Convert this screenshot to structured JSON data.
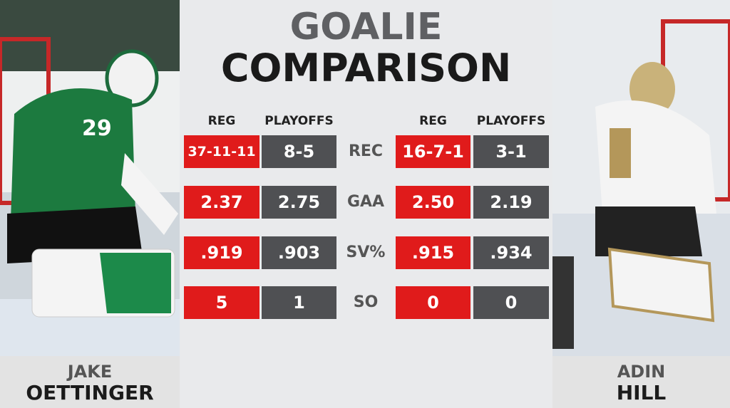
{
  "title": {
    "line1": "GOALIE",
    "line2": "COMPARISON"
  },
  "players": [
    {
      "first": "JAKE",
      "last": "OETTINGER"
    },
    {
      "first": "ADIN",
      "last": "HILL"
    }
  ],
  "columns": [
    "REG",
    "PLAYOFFS",
    "REG",
    "PLAYOFFS"
  ],
  "rows": [
    {
      "label": "REC",
      "values": [
        "37-11-11",
        "8-5",
        "16-7-1",
        "3-1"
      ]
    },
    {
      "label": "GAA",
      "values": [
        "2.37",
        "2.75",
        "2.50",
        "2.19"
      ]
    },
    {
      "label": "SV%",
      "values": [
        ".919",
        ".903",
        ".915",
        ".934"
      ]
    },
    {
      "label": "SO",
      "values": [
        "5",
        "1",
        "0",
        "0"
      ]
    }
  ]
}
